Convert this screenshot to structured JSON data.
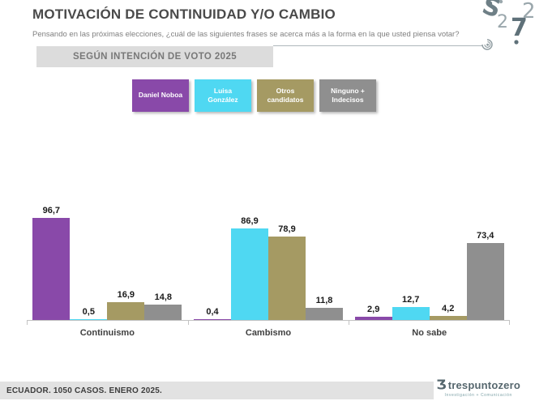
{
  "header": {
    "title": "MOTIVACIÓN DE CONTINUIDAD Y/O CAMBIO",
    "subtitle": "Pensando en las próximas elecciones, ¿cuál de las siguientes frases se acerca más a la forma en la que usted piensa votar?",
    "banner": "SEGÚN INTENCIÓN DE VOTO 2025"
  },
  "chart_data": {
    "type": "bar",
    "title": "Motivación de continuidad y/o cambio según intención de voto 2025",
    "categories": [
      "Continuismo",
      "Cambismo",
      "No sabe"
    ],
    "series": [
      {
        "name": "Daniel Noboa",
        "color": "#8949A9",
        "values": [
          96.7,
          0.4,
          2.9
        ]
      },
      {
        "name": "Luisa González",
        "color": "#4FD8F2",
        "values": [
          0.5,
          86.9,
          12.7
        ]
      },
      {
        "name": "Otros candidatos",
        "color": "#A59A63",
        "values": [
          16.9,
          78.9,
          4.2
        ]
      },
      {
        "name": "Ninguno + Indecisos",
        "color": "#8F8F8F",
        "values": [
          14.8,
          11.8,
          73.4
        ]
      }
    ],
    "ylim": [
      0,
      100
    ],
    "grid": false,
    "legend_position": "top",
    "value_label_format": "comma-decimal",
    "xlabel": "",
    "ylabel": ""
  },
  "footer": {
    "source": "ECUADOR. 1050 CASOS. ENERO 2025.",
    "brand": "trespuntozero",
    "brand_caption": "Investigación + Comunicación"
  }
}
